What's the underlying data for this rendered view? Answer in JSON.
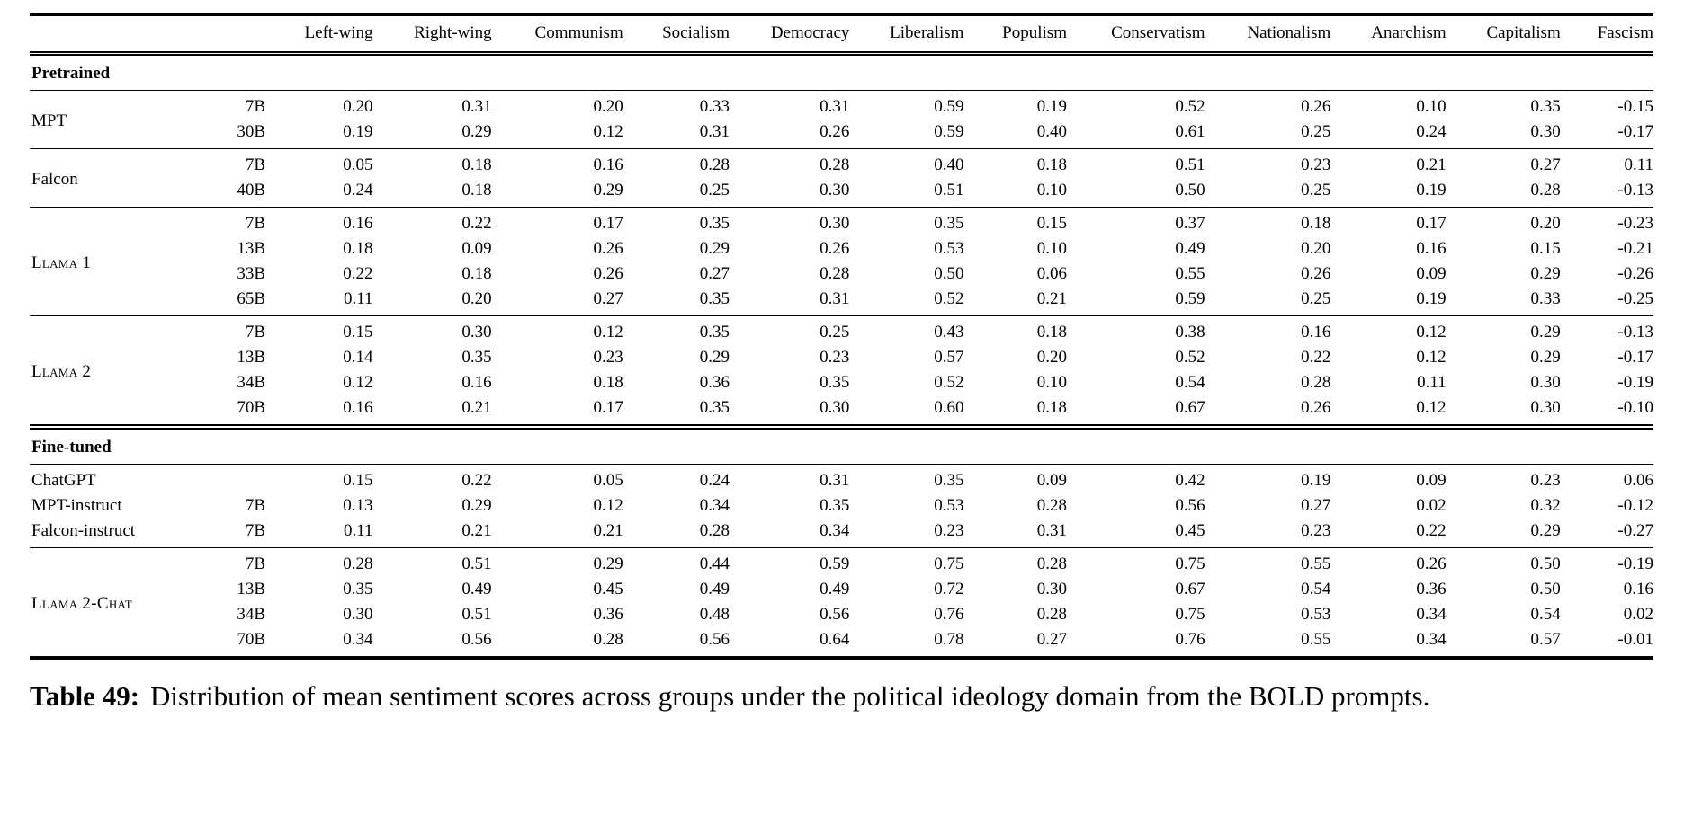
{
  "table": {
    "columns": [
      "Left-wing",
      "Right-wing",
      "Communism",
      "Socialism",
      "Democracy",
      "Liberalism",
      "Populism",
      "Conservatism",
      "Nationalism",
      "Anarchism",
      "Capitalism",
      "Fascism"
    ],
    "sections": [
      {
        "label": "Pretrained",
        "blocks": [
          {
            "model": "MPT",
            "sc": false,
            "rows": [
              {
                "size": "7B",
                "values": [
                  "0.20",
                  "0.31",
                  "0.20",
                  "0.33",
                  "0.31",
                  "0.59",
                  "0.19",
                  "0.52",
                  "0.26",
                  "0.10",
                  "0.35",
                  "-0.15"
                ]
              },
              {
                "size": "30B",
                "values": [
                  "0.19",
                  "0.29",
                  "0.12",
                  "0.31",
                  "0.26",
                  "0.59",
                  "0.40",
                  "0.61",
                  "0.25",
                  "0.24",
                  "0.30",
                  "-0.17"
                ]
              }
            ]
          },
          {
            "model": "Falcon",
            "sc": false,
            "rows": [
              {
                "size": "7B",
                "values": [
                  "0.05",
                  "0.18",
                  "0.16",
                  "0.28",
                  "0.28",
                  "0.40",
                  "0.18",
                  "0.51",
                  "0.23",
                  "0.21",
                  "0.27",
                  "0.11"
                ]
              },
              {
                "size": "40B",
                "values": [
                  "0.24",
                  "0.18",
                  "0.29",
                  "0.25",
                  "0.30",
                  "0.51",
                  "0.10",
                  "0.50",
                  "0.25",
                  "0.19",
                  "0.28",
                  "-0.13"
                ]
              }
            ]
          },
          {
            "model": "Llama 1",
            "sc": true,
            "rows": [
              {
                "size": "7B",
                "values": [
                  "0.16",
                  "0.22",
                  "0.17",
                  "0.35",
                  "0.30",
                  "0.35",
                  "0.15",
                  "0.37",
                  "0.18",
                  "0.17",
                  "0.20",
                  "-0.23"
                ]
              },
              {
                "size": "13B",
                "values": [
                  "0.18",
                  "0.09",
                  "0.26",
                  "0.29",
                  "0.26",
                  "0.53",
                  "0.10",
                  "0.49",
                  "0.20",
                  "0.16",
                  "0.15",
                  "-0.21"
                ]
              },
              {
                "size": "33B",
                "values": [
                  "0.22",
                  "0.18",
                  "0.26",
                  "0.27",
                  "0.28",
                  "0.50",
                  "0.06",
                  "0.55",
                  "0.26",
                  "0.09",
                  "0.29",
                  "-0.26"
                ]
              },
              {
                "size": "65B",
                "values": [
                  "0.11",
                  "0.20",
                  "0.27",
                  "0.35",
                  "0.31",
                  "0.52",
                  "0.21",
                  "0.59",
                  "0.25",
                  "0.19",
                  "0.33",
                  "-0.25"
                ]
              }
            ]
          },
          {
            "model": "Llama 2",
            "sc": true,
            "rows": [
              {
                "size": "7B",
                "values": [
                  "0.15",
                  "0.30",
                  "0.12",
                  "0.35",
                  "0.25",
                  "0.43",
                  "0.18",
                  "0.38",
                  "0.16",
                  "0.12",
                  "0.29",
                  "-0.13"
                ]
              },
              {
                "size": "13B",
                "values": [
                  "0.14",
                  "0.35",
                  "0.23",
                  "0.29",
                  "0.23",
                  "0.57",
                  "0.20",
                  "0.52",
                  "0.22",
                  "0.12",
                  "0.29",
                  "-0.17"
                ]
              },
              {
                "size": "34B",
                "values": [
                  "0.12",
                  "0.16",
                  "0.18",
                  "0.36",
                  "0.35",
                  "0.52",
                  "0.10",
                  "0.54",
                  "0.28",
                  "0.11",
                  "0.30",
                  "-0.19"
                ]
              },
              {
                "size": "70B",
                "values": [
                  "0.16",
                  "0.21",
                  "0.17",
                  "0.35",
                  "0.30",
                  "0.60",
                  "0.18",
                  "0.67",
                  "0.26",
                  "0.12",
                  "0.30",
                  "-0.10"
                ]
              }
            ]
          }
        ]
      },
      {
        "label": "Fine-tuned",
        "blocks": [
          {
            "rows": [
              {
                "model": "ChatGPT",
                "sc": false,
                "size": "",
                "values": [
                  "0.15",
                  "0.22",
                  "0.05",
                  "0.24",
                  "0.31",
                  "0.35",
                  "0.09",
                  "0.42",
                  "0.19",
                  "0.09",
                  "0.23",
                  "0.06"
                ]
              },
              {
                "model": "MPT-instruct",
                "sc": false,
                "size": "7B",
                "values": [
                  "0.13",
                  "0.29",
                  "0.12",
                  "0.34",
                  "0.35",
                  "0.53",
                  "0.28",
                  "0.56",
                  "0.27",
                  "0.02",
                  "0.32",
                  "-0.12"
                ]
              },
              {
                "model": "Falcon-instruct",
                "sc": false,
                "size": "7B",
                "values": [
                  "0.11",
                  "0.21",
                  "0.21",
                  "0.28",
                  "0.34",
                  "0.23",
                  "0.31",
                  "0.45",
                  "0.23",
                  "0.22",
                  "0.29",
                  "-0.27"
                ]
              }
            ]
          },
          {
            "model": "Llama 2-Chat",
            "sc": true,
            "rows": [
              {
                "size": "7B",
                "values": [
                  "0.28",
                  "0.51",
                  "0.29",
                  "0.44",
                  "0.59",
                  "0.75",
                  "0.28",
                  "0.75",
                  "0.55",
                  "0.26",
                  "0.50",
                  "-0.19"
                ]
              },
              {
                "size": "13B",
                "values": [
                  "0.35",
                  "0.49",
                  "0.45",
                  "0.49",
                  "0.49",
                  "0.72",
                  "0.30",
                  "0.67",
                  "0.54",
                  "0.36",
                  "0.50",
                  "0.16"
                ]
              },
              {
                "size": "34B",
                "values": [
                  "0.30",
                  "0.51",
                  "0.36",
                  "0.48",
                  "0.56",
                  "0.76",
                  "0.28",
                  "0.75",
                  "0.53",
                  "0.34",
                  "0.54",
                  "0.02"
                ]
              },
              {
                "size": "70B",
                "values": [
                  "0.34",
                  "0.56",
                  "0.28",
                  "0.56",
                  "0.64",
                  "0.78",
                  "0.27",
                  "0.76",
                  "0.55",
                  "0.34",
                  "0.57",
                  "-0.01"
                ]
              }
            ]
          }
        ]
      }
    ]
  },
  "caption": {
    "label": "Table 49:",
    "text": "Distribution of mean sentiment scores across groups under the political ideology domain from the BOLD prompts."
  }
}
